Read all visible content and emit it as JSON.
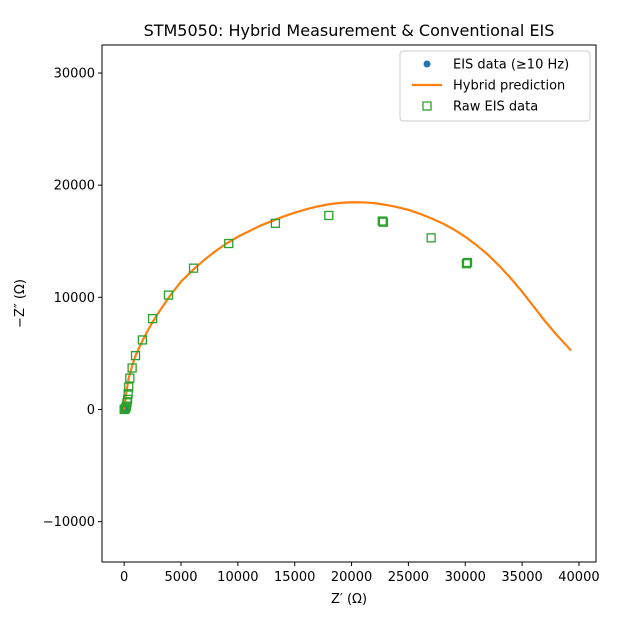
{
  "chart_data": {
    "type": "scatter",
    "title": "STM5050: Hybrid Measurement & Conventional EIS",
    "xlabel": "Z′ (Ω)",
    "ylabel": "−Z″ (Ω)",
    "xlim": [
      -1950,
      41500
    ],
    "ylim": [
      -13600,
      32500
    ],
    "xticks": [
      0,
      5000,
      10000,
      15000,
      20000,
      25000,
      30000,
      35000,
      40000
    ],
    "xtick_labels": [
      "0",
      "5000",
      "10000",
      "15000",
      "20000",
      "25000",
      "30000",
      "35000",
      "40000"
    ],
    "yticks": [
      -10000,
      0,
      10000,
      20000,
      30000
    ],
    "ytick_labels": [
      "−10000",
      "0",
      "10000",
      "20000",
      "30000"
    ],
    "grid": false,
    "legend_position": "top-right",
    "series": [
      {
        "name": "EIS data (≥10 Hz)",
        "kind": "scatter",
        "marker": "filled-circle",
        "color": "#1f77b4",
        "x": [
          80,
          110,
          140,
          170,
          200
        ],
        "y": [
          0,
          20,
          40,
          60,
          80
        ]
      },
      {
        "name": "Hybrid prediction",
        "kind": "line",
        "color": "#ff7f0e",
        "x": [
          0,
          200,
          400,
          700,
          1000,
          1500,
          2000,
          2500,
          3000,
          4000,
          5000,
          6000,
          7000,
          8000,
          9000,
          10000,
          11000,
          12000,
          13000,
          14000,
          15000,
          16000,
          17000,
          18000,
          19000,
          20000,
          21000,
          22000,
          23000,
          24000,
          25000,
          26000,
          27000,
          28000,
          29000,
          30000,
          31000,
          32000,
          33000,
          34000,
          35000,
          36000,
          37000,
          38000,
          39000,
          39300
        ],
        "y": [
          0,
          1600,
          2800,
          3900,
          4800,
          5900,
          6900,
          7800,
          8600,
          10100,
          11400,
          12400,
          13300,
          14100,
          14800,
          15400,
          15900,
          16400,
          16800,
          17200,
          17550,
          17850,
          18100,
          18300,
          18420,
          18480,
          18470,
          18400,
          18250,
          18050,
          17800,
          17450,
          17050,
          16600,
          16050,
          15400,
          14650,
          13800,
          12800,
          11700,
          10500,
          9200,
          7900,
          6700,
          5600,
          5250
        ]
      },
      {
        "name": "Raw EIS data",
        "kind": "scatter",
        "marker": "open-square",
        "color": "#2ca02c",
        "x": [
          0,
          80,
          150,
          200,
          250,
          300,
          350,
          400,
          500,
          700,
          1000,
          1600,
          2500,
          3900,
          6100,
          9200,
          13300,
          18000,
          22700,
          22800,
          27000,
          30100,
          30200
        ],
        "y": [
          0,
          50,
          150,
          300,
          600,
          900,
          1400,
          2000,
          2800,
          3700,
          4800,
          6200,
          8100,
          10200,
          12600,
          14800,
          16600,
          17300,
          16800,
          16700,
          15300,
          13000,
          13100
        ]
      }
    ]
  }
}
